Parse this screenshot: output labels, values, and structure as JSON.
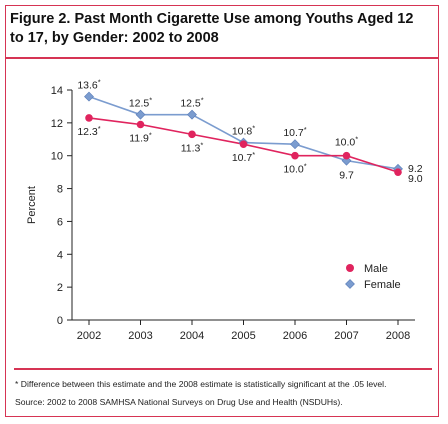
{
  "figure": {
    "title": "Figure 2. Past Month Cigarette Use among Youths Aged 12 to 17, by Gender: 2002 to 2008",
    "footnote": "* Difference between this estimate and the 2008 estimate is statistically significant at the .05 level.",
    "source": "Source: 2002 to 2008 SAMHSA National Surveys on Drug Use and Health (NSDUHs)."
  },
  "colors": {
    "male": "#e0245e",
    "female": "#7b9ccf",
    "accent": "#d63454"
  },
  "chart_data": {
    "type": "line",
    "title": "Figure 2. Past Month Cigarette Use among Youths Aged 12 to 17, by Gender: 2002 to 2008",
    "xlabel": "",
    "ylabel": "Percent",
    "ylim": [
      0,
      14
    ],
    "yticks": [
      "0",
      "2",
      "4",
      "6",
      "8",
      "10",
      "12",
      "14"
    ],
    "categories": [
      "2002",
      "2003",
      "2004",
      "2005",
      "2006",
      "2007",
      "2008"
    ],
    "grid": false,
    "legend_position": "bottom-right",
    "series": [
      {
        "name": "Male",
        "marker": "circle",
        "values": [
          12.3,
          11.9,
          11.3,
          10.7,
          10.0,
          10.0,
          9.0
        ],
        "labels": [
          "12.3*",
          "11.9*",
          "11.3*",
          "10.7*",
          "10.0*",
          "10.0*",
          "9.0"
        ]
      },
      {
        "name": "Female",
        "marker": "diamond",
        "values": [
          13.6,
          12.5,
          12.5,
          10.8,
          10.7,
          9.7,
          9.2
        ],
        "labels": [
          "13.6*",
          "12.5*",
          "12.5*",
          "10.8*",
          "10.7*",
          "9.7",
          "9.2"
        ]
      }
    ]
  }
}
